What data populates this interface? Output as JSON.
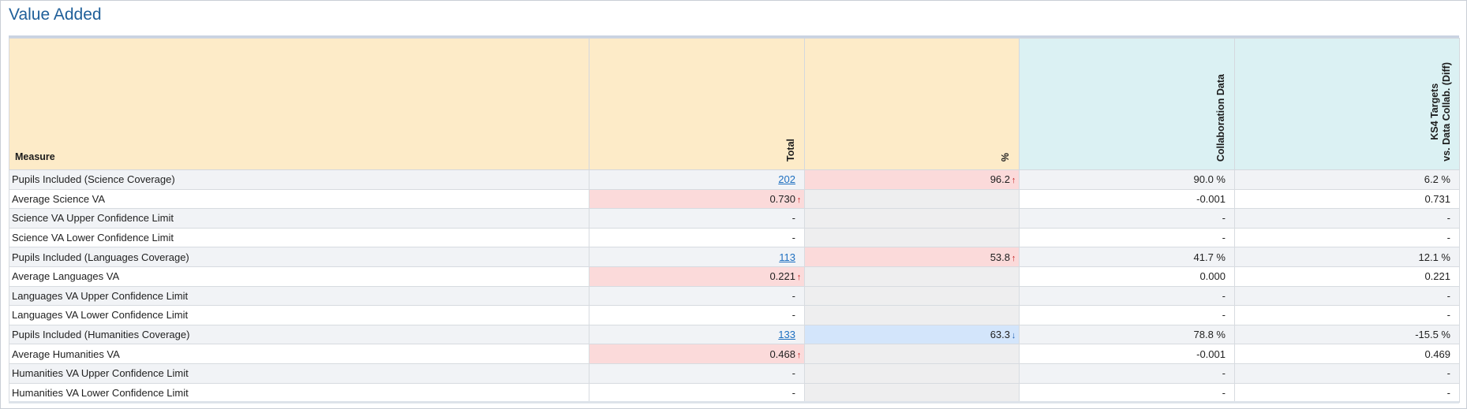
{
  "panel": {
    "title": "Value Added"
  },
  "table": {
    "headers": {
      "measure": "Measure",
      "total": "Total",
      "percent": "%",
      "collab": "Collaboration Data",
      "diff_line1": "KS4 Targets",
      "diff_line2": "vs. Data Collab. (Diff)"
    },
    "rows": [
      {
        "measure": "Pupils Included (Science Coverage)",
        "total": "202",
        "total_link": true,
        "total_trend": "",
        "total_color": "",
        "pct": "96.2",
        "pct_trend": "up",
        "pct_color": "red",
        "collab": "90.0 %",
        "diff": "6.2 %"
      },
      {
        "measure": "Average Science VA",
        "total": "0.730",
        "total_link": false,
        "total_trend": "up",
        "total_color": "red",
        "pct": "",
        "pct_trend": "",
        "pct_color": "grey",
        "collab": "-0.001",
        "diff": "0.731"
      },
      {
        "measure": "Science VA Upper Confidence Limit",
        "total": "-",
        "total_link": false,
        "total_trend": "",
        "total_color": "",
        "pct": "",
        "pct_trend": "",
        "pct_color": "grey",
        "collab": "-",
        "diff": "-"
      },
      {
        "measure": "Science VA Lower Confidence Limit",
        "total": "-",
        "total_link": false,
        "total_trend": "",
        "total_color": "",
        "pct": "",
        "pct_trend": "",
        "pct_color": "grey",
        "collab": "-",
        "diff": "-"
      },
      {
        "measure": "Pupils Included (Languages Coverage)",
        "total": "113",
        "total_link": true,
        "total_trend": "",
        "total_color": "",
        "pct": "53.8",
        "pct_trend": "up",
        "pct_color": "red",
        "collab": "41.7 %",
        "diff": "12.1 %"
      },
      {
        "measure": "Average Languages VA",
        "total": "0.221",
        "total_link": false,
        "total_trend": "up",
        "total_color": "red",
        "pct": "",
        "pct_trend": "",
        "pct_color": "grey",
        "collab": "0.000",
        "diff": "0.221"
      },
      {
        "measure": "Languages VA Upper Confidence Limit",
        "total": "-",
        "total_link": false,
        "total_trend": "",
        "total_color": "",
        "pct": "",
        "pct_trend": "",
        "pct_color": "grey",
        "collab": "-",
        "diff": "-"
      },
      {
        "measure": "Languages VA Lower Confidence Limit",
        "total": "-",
        "total_link": false,
        "total_trend": "",
        "total_color": "",
        "pct": "",
        "pct_trend": "",
        "pct_color": "grey",
        "collab": "-",
        "diff": "-"
      },
      {
        "measure": "Pupils Included (Humanities Coverage)",
        "total": "133",
        "total_link": true,
        "total_trend": "",
        "total_color": "",
        "pct": "63.3",
        "pct_trend": "down",
        "pct_color": "blue",
        "collab": "78.8 %",
        "diff": "-15.5 %"
      },
      {
        "measure": "Average Humanities VA",
        "total": "0.468",
        "total_link": false,
        "total_trend": "up",
        "total_color": "red",
        "pct": "",
        "pct_trend": "",
        "pct_color": "grey",
        "collab": "-0.001",
        "diff": "0.469"
      },
      {
        "measure": "Humanities VA Upper Confidence Limit",
        "total": "-",
        "total_link": false,
        "total_trend": "",
        "total_color": "",
        "pct": "",
        "pct_trend": "",
        "pct_color": "grey",
        "collab": "-",
        "diff": "-"
      },
      {
        "measure": "Humanities VA Lower Confidence Limit",
        "total": "-",
        "total_link": false,
        "total_trend": "",
        "total_color": "",
        "pct": "",
        "pct_trend": "",
        "pct_color": "grey",
        "collab": "-",
        "diff": "-"
      }
    ]
  },
  "colors": {
    "title": "#1f5f99",
    "header_orange": "#fdebc8",
    "header_blue": "#dbf1f3",
    "highlight_red": "#fbdada",
    "highlight_blue": "#d3e5fb",
    "link": "#1d6fc0",
    "arrow_up": "#c01d1d",
    "arrow_down": "#1d5fb0"
  },
  "icons": {
    "up": "arrow-up-icon",
    "down": "arrow-down-icon"
  }
}
